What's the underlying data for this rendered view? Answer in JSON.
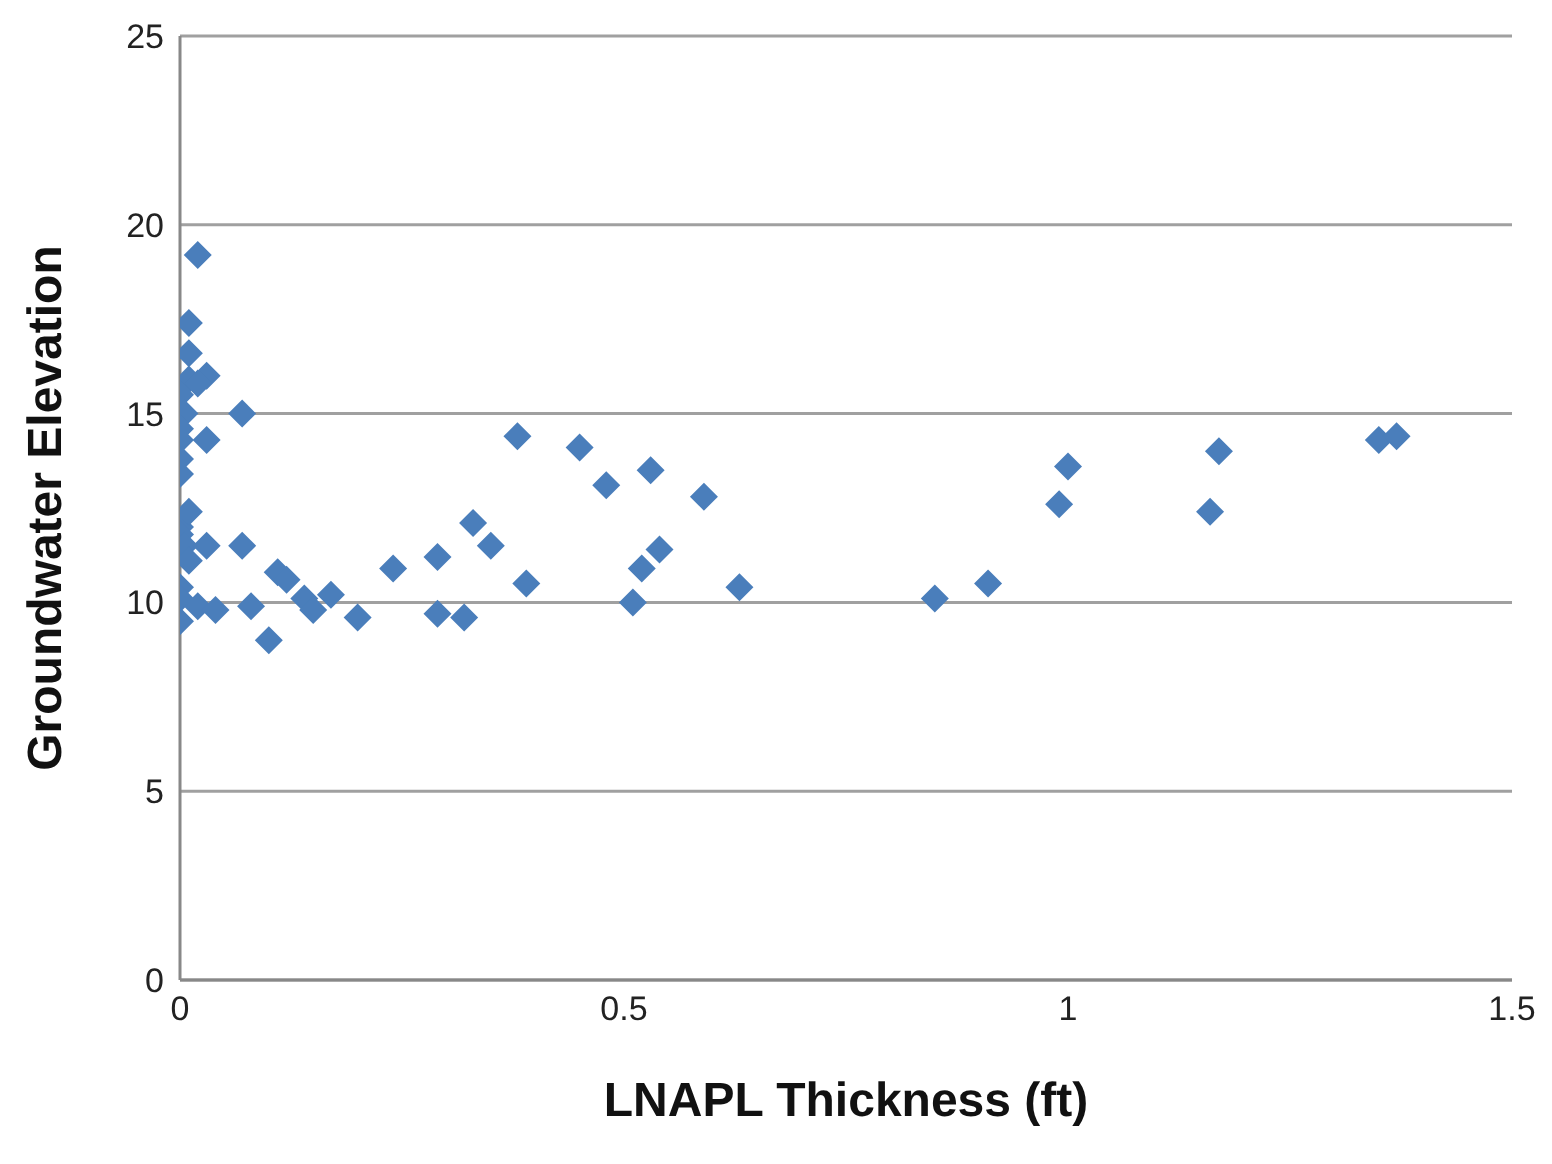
{
  "chart_data": {
    "type": "scatter",
    "xlabel": "LNAPL Thickness (ft)",
    "ylabel": "Groundwater Elevation",
    "x": [
      0.02,
      0.01,
      0.01,
      0.01,
      0.03,
      0.02,
      0.0,
      0.005,
      0.0,
      0.0,
      0.03,
      0.0,
      0.0,
      0.07,
      0.0,
      0.01,
      0.0,
      0.005,
      0.01,
      0.03,
      0.0,
      0.0,
      0.0,
      0.02,
      0.04,
      0.07,
      0.08,
      0.1,
      0.11,
      0.12,
      0.14,
      0.15,
      0.17,
      0.2,
      0.24,
      0.29,
      0.29,
      0.32,
      0.33,
      0.35,
      0.38,
      0.39,
      0.45,
      0.48,
      0.51,
      0.52,
      0.53,
      0.54,
      0.59,
      0.63,
      0.85,
      0.91,
      0.99,
      1.0,
      1.16,
      1.17,
      1.35,
      1.37
    ],
    "series": [
      {
        "color": "#4a7ebb",
        "values": [
          19.2,
          17.4,
          16.6,
          15.9,
          16.0,
          15.8,
          15.5,
          15.0,
          14.6,
          14.3,
          14.3,
          13.8,
          13.4,
          15.0,
          12.0,
          12.4,
          11.8,
          11.5,
          11.1,
          11.5,
          10.4,
          10.1,
          9.5,
          9.9,
          9.8,
          11.5,
          9.9,
          9.0,
          10.8,
          10.6,
          10.1,
          9.8,
          10.2,
          9.6,
          10.9,
          11.2,
          9.7,
          9.6,
          12.1,
          11.5,
          14.4,
          10.5,
          14.1,
          13.1,
          10.0,
          10.9,
          13.5,
          11.4,
          12.8,
          10.4,
          10.1,
          10.5,
          12.6,
          13.6,
          12.4,
          14.0,
          14.3,
          14.4
        ]
      }
    ],
    "xlim": [
      0,
      1.5
    ],
    "xticks": [
      0,
      0.5,
      1,
      1.5
    ],
    "ylim": [
      0,
      25
    ],
    "yticks": [
      0,
      5,
      10,
      15,
      20,
      25
    ],
    "grid": "y",
    "marker": "diamond"
  }
}
